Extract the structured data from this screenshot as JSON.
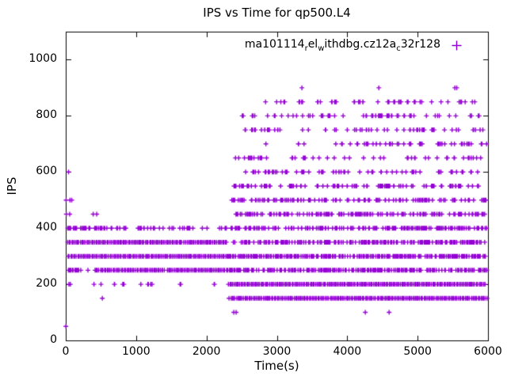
{
  "window": {
    "background": "#ffffff",
    "text_color": "#000000"
  },
  "chart_data": {
    "type": "scatter",
    "title": "IPS vs Time for qp500.L4",
    "xlabel": "Time(s)",
    "ylabel": "IPS",
    "xlim": [
      0,
      6000
    ],
    "ylim": [
      0,
      1100
    ],
    "xticks": [
      0,
      1000,
      2000,
      3000,
      4000,
      5000,
      6000
    ],
    "yticks": [
      0,
      200,
      400,
      600,
      800,
      1000
    ],
    "grid": false,
    "tick_style": "inward-mirrored",
    "legend": {
      "label_plain": "ma101114_rel_withdbg.cz12a_c32r128",
      "segments": [
        {
          "t": "ma101114"
        },
        {
          "t": "r",
          "sub": true
        },
        {
          "t": "el"
        },
        {
          "t": "w",
          "sub": true
        },
        {
          "t": "ithdbg.cz12a"
        },
        {
          "t": "c",
          "sub": true
        },
        {
          "t": "32r128"
        }
      ],
      "position": "top-right-inside"
    },
    "marker": {
      "shape": "plus",
      "color": "#9400D3",
      "size": 6
    },
    "series_bands": [
      {
        "y": 350,
        "segs": [
          [
            20,
            640,
            1
          ],
          [
            640,
            665,
            0.3
          ],
          [
            665,
            1630,
            1
          ],
          [
            1630,
            1700,
            0.55
          ],
          [
            1700,
            2290,
            1
          ],
          [
            2350,
            5985,
            0.72
          ]
        ]
      },
      {
        "y": 300,
        "segs": [
          [
            25,
            2290,
            1
          ],
          [
            2300,
            5985,
            0.85
          ]
        ]
      },
      {
        "y": 250,
        "segs": [
          [
            30,
            215,
            0.85
          ],
          [
            215,
            405,
            0.35
          ],
          [
            405,
            1370,
            1
          ],
          [
            1370,
            1435,
            0.5
          ],
          [
            1435,
            2290,
            1
          ],
          [
            2300,
            5985,
            0.78
          ]
        ]
      },
      {
        "y": 400,
        "segs": [
          [
            0,
            500,
            0.8
          ],
          [
            500,
            2290,
            0.28
          ],
          [
            2300,
            5985,
            0.62
          ]
        ]
      },
      {
        "y": 200,
        "segs": [
          [
            0,
            2290,
            0.14
          ],
          [
            2308,
            5960,
            1
          ]
        ]
      },
      {
        "y": 150,
        "segs": [
          [
            2320,
            3360,
            1
          ],
          [
            3378,
            3735,
            1
          ],
          [
            3752,
            4272,
            1
          ],
          [
            4290,
            4408,
            1
          ],
          [
            4426,
            5175,
            1
          ],
          [
            5192,
            5738,
            1
          ],
          [
            5756,
            5985,
            1
          ]
        ]
      },
      {
        "y": 450,
        "segs": [
          [
            2350,
            5985,
            0.6
          ]
        ]
      },
      {
        "y": 500,
        "segs": [
          [
            2330,
            5985,
            0.45
          ]
        ]
      },
      {
        "y": 550,
        "segs": [
          [
            2330,
            5985,
            0.38
          ]
        ]
      },
      {
        "y": 600,
        "segs": [
          [
            2450,
            5985,
            0.3
          ]
        ]
      },
      {
        "y": 650,
        "segs": [
          [
            2410,
            5985,
            0.22
          ]
        ]
      },
      {
        "y": 700,
        "segs": [
          [
            2615,
            4200,
            0.15
          ],
          [
            4200,
            5985,
            0.28
          ]
        ]
      },
      {
        "y": 750,
        "segs": [
          [
            2540,
            5985,
            0.3
          ]
        ]
      },
      {
        "y": 800,
        "segs": [
          [
            2500,
            5985,
            0.33
          ]
        ]
      },
      {
        "y": 850,
        "segs": [
          [
            2690,
            5830,
            0.25
          ]
        ]
      }
    ],
    "series_points": [
      {
        "y": 900,
        "t": [
          3356,
          4449,
          5529,
          5556
        ]
      },
      {
        "y": 600,
        "t": [
          40
        ]
      },
      {
        "y": 500,
        "t": [
          5,
          60,
          85
        ]
      },
      {
        "y": 450,
        "t": [
          8,
          56,
          390,
          440
        ]
      },
      {
        "y": 150,
        "t": [
          520
        ]
      },
      {
        "y": 100,
        "t": [
          2388,
          2421,
          4257,
          4595
        ]
      },
      {
        "y": 50,
        "t": [
          2
        ]
      }
    ]
  }
}
